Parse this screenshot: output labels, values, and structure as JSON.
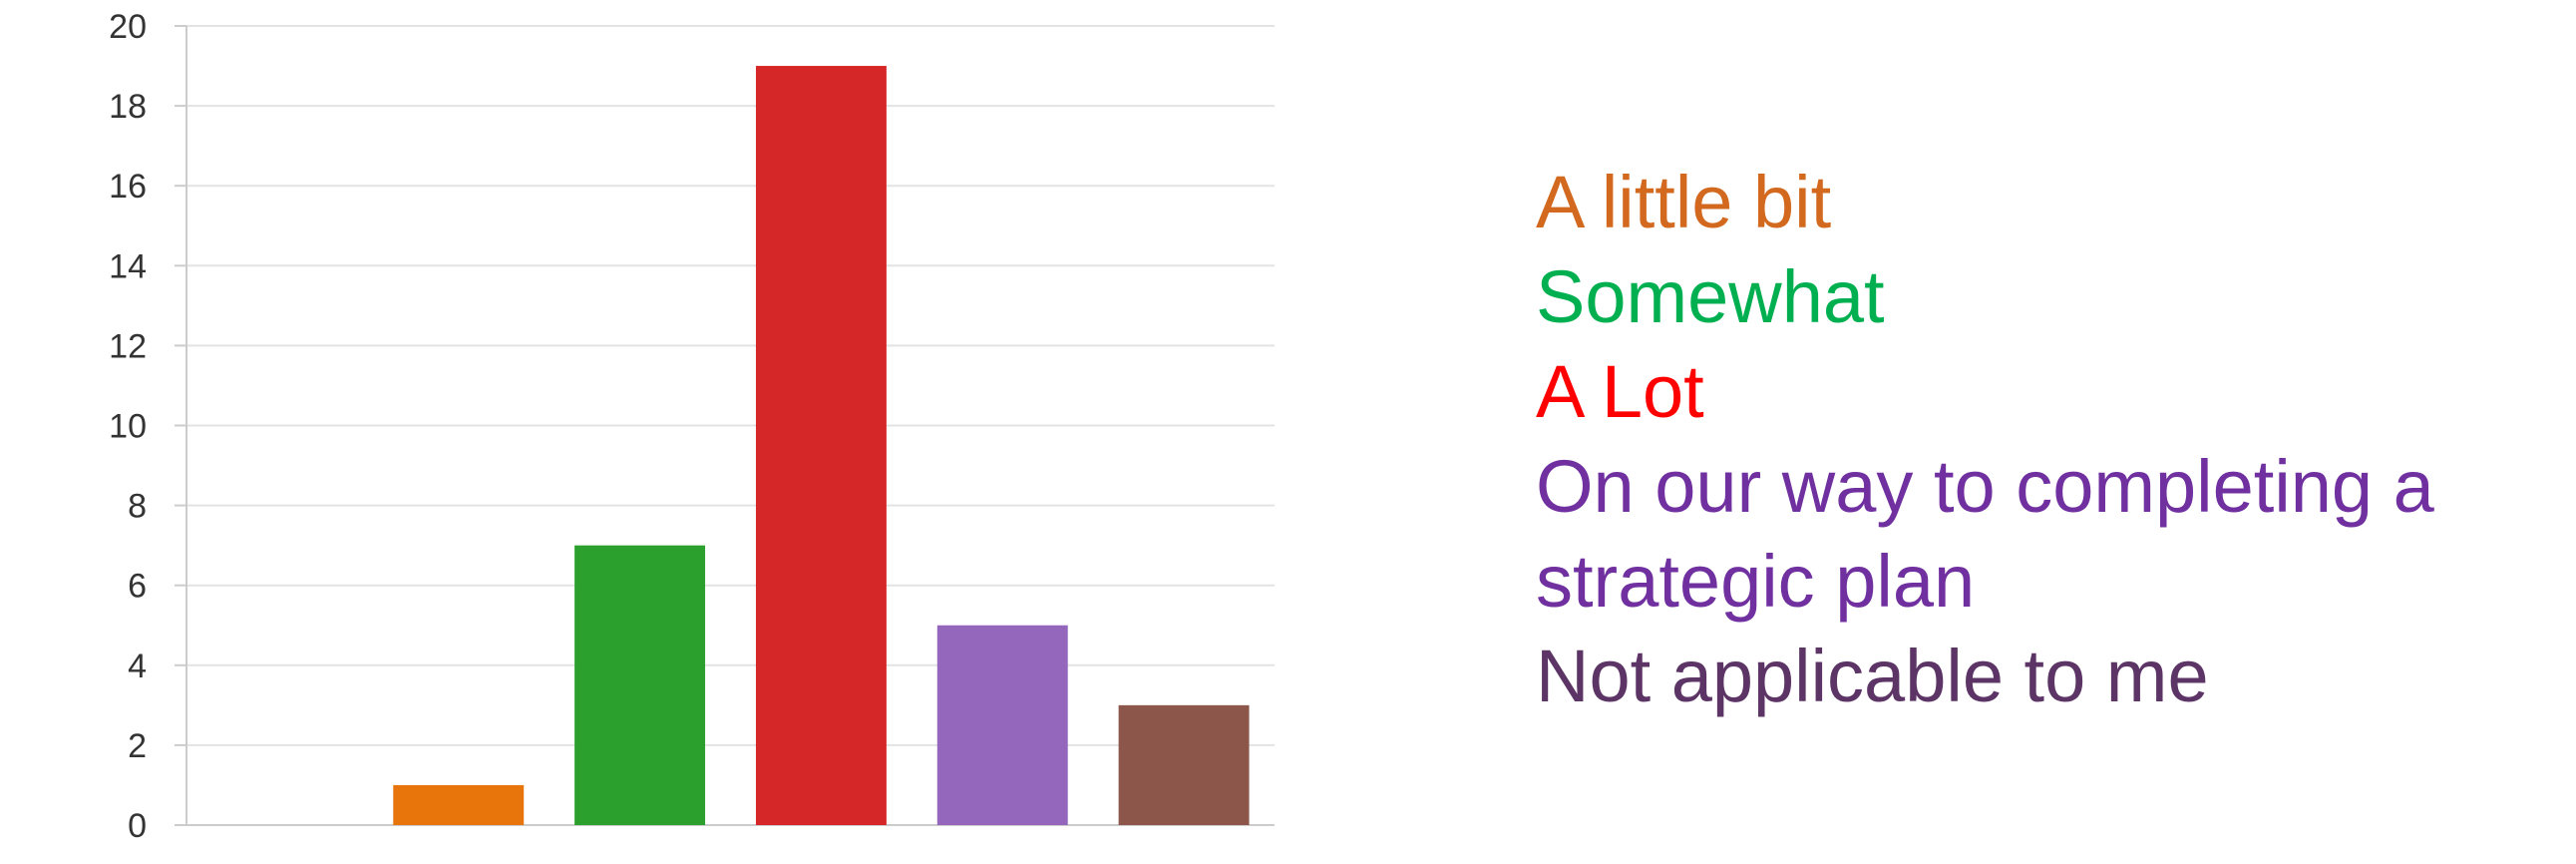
{
  "chart_data": {
    "type": "bar",
    "categories": [
      "",
      "A little bit",
      "Somewhat",
      "A Lot",
      "On our way to completing a strategic plan",
      "Not applicable to me"
    ],
    "values": [
      0,
      1,
      7,
      19,
      5,
      3
    ],
    "bar_colors": [
      "#1f77b4",
      "#e8740c",
      "#2ca02c",
      "#d62728",
      "#9467bd",
      "#8c564b"
    ],
    "ylim": [
      0,
      20
    ],
    "yticks": [
      0,
      2,
      4,
      6,
      8,
      10,
      12,
      14,
      16,
      18,
      20
    ],
    "grid": true,
    "legend_position": "right"
  },
  "legend": {
    "items": [
      {
        "label": "A little bit",
        "color": "#d2691e"
      },
      {
        "label": "Somewhat",
        "color": "#00b050"
      },
      {
        "label": "A Lot",
        "color": "#ff0000"
      },
      {
        "label": "On our way to completing a strategic plan",
        "color": "#7030a0"
      },
      {
        "label": "Not applicable to me",
        "color": "#5c3566"
      }
    ]
  }
}
